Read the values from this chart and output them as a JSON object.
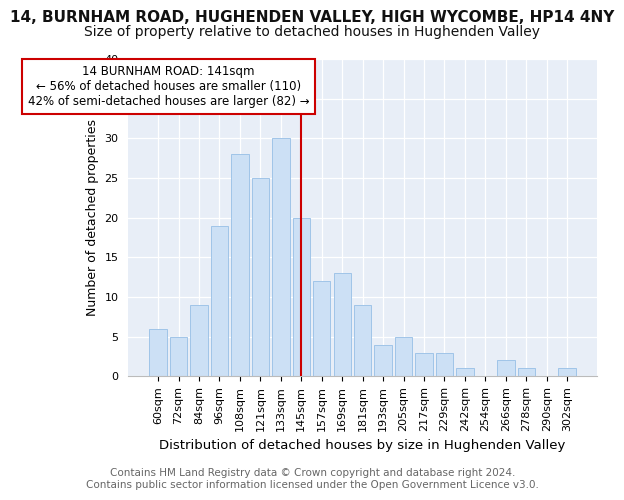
{
  "title": "14, BURNHAM ROAD, HUGHENDEN VALLEY, HIGH WYCOMBE, HP14 4NY",
  "subtitle": "Size of property relative to detached houses in Hughenden Valley",
  "xlabel": "Distribution of detached houses by size in Hughenden Valley",
  "ylabel": "Number of detached properties",
  "footer_line1": "Contains HM Land Registry data © Crown copyright and database right 2024.",
  "footer_line2": "Contains public sector information licensed under the Open Government Licence v3.0.",
  "bar_labels": [
    "60sqm",
    "72sqm",
    "84sqm",
    "96sqm",
    "108sqm",
    "121sqm",
    "133sqm",
    "145sqm",
    "157sqm",
    "169sqm",
    "181sqm",
    "193sqm",
    "205sqm",
    "217sqm",
    "229sqm",
    "242sqm",
    "254sqm",
    "266sqm",
    "278sqm",
    "290sqm",
    "302sqm"
  ],
  "bar_values": [
    6,
    5,
    9,
    19,
    28,
    25,
    30,
    20,
    12,
    13,
    9,
    4,
    5,
    3,
    3,
    1,
    0,
    2,
    1,
    0,
    1
  ],
  "bar_color": "#cce0f5",
  "bar_edge_color": "#a0c4e8",
  "vline_x": 7,
  "vline_color": "#cc0000",
  "annotation_title": "14 BURNHAM ROAD: 141sqm",
  "annotation_line1": "← 56% of detached houses are smaller (110)",
  "annotation_line2": "42% of semi-detached houses are larger (82) →",
  "annotation_box_color": "#ffffff",
  "annotation_border_color": "#cc0000",
  "ylim": [
    0,
    40
  ],
  "yticks": [
    0,
    5,
    10,
    15,
    20,
    25,
    30,
    35,
    40
  ],
  "figure_background_color": "#ffffff",
  "plot_background_color": "#e8eef7",
  "title_fontsize": 11,
  "subtitle_fontsize": 10,
  "xlabel_fontsize": 9.5,
  "ylabel_fontsize": 9,
  "tick_fontsize": 8,
  "footer_fontsize": 7.5
}
